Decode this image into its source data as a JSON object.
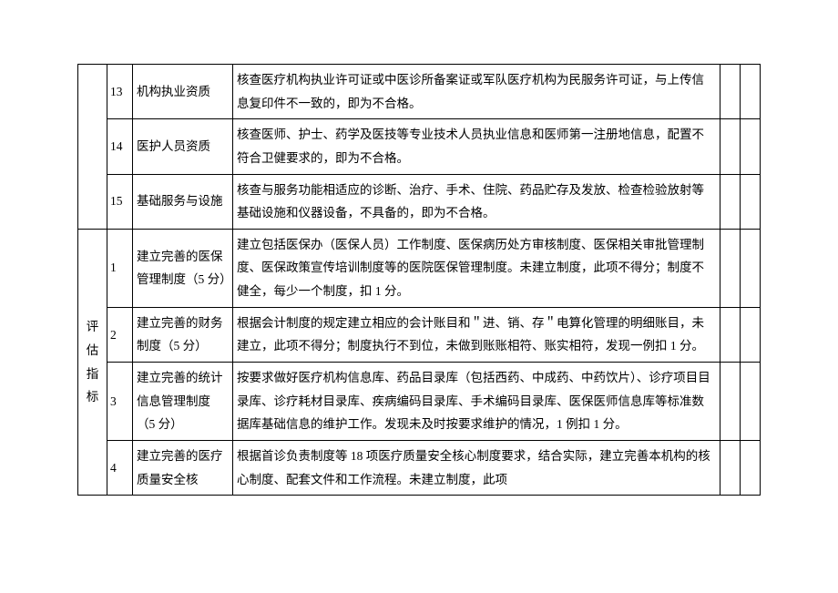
{
  "categories": {
    "top": "",
    "bottom": "评估指标"
  },
  "rows": [
    {
      "num": "13",
      "name": "机构执业资质",
      "desc": "核查医疗机构执业许可证或中医诊所备案证或军队医疗机构为民服务许可证，与上传信息复印件不一致的，即为不合格。"
    },
    {
      "num": "14",
      "name": "医护人员资质",
      "desc": "核查医师、护士、药学及医技等专业技术人员执业信息和医师第一注册地信息，配置不符合卫健要求的，即为不合格。"
    },
    {
      "num": "15",
      "name": "基础服务与设施",
      "desc": "核查与服务功能相适应的诊断、治疗、手术、住院、药品贮存及发放、检查检验放射等基础设施和仪器设备，不具备的，即为不合格。"
    },
    {
      "num": "1",
      "name": "建立完善的医保管理制度（5 分）",
      "desc": "建立包括医保办（医保人员）工作制度、医保病历处方审核制度、医保相关审批管理制度、医保政策宣传培训制度等的医院医保管理制度。未建立制度，此项不得分；制度不健全，每少一个制度，扣 1 分。"
    },
    {
      "num": "2",
      "name": "建立完善的财务制度（5 分）",
      "desc": "根据会计制度的规定建立相应的会计账目和＂进、销、存＂电算化管理的明细账目，未建立，此项不得分；制度执行不到位，未做到账账相符、账实相符，发现一例扣 1 分。"
    },
    {
      "num": "3",
      "name": "建立完善的统计信息管理制度（5 分）",
      "desc": "按要求做好医疗机构信息库、药品目录库（包括西药、中成药、中药饮片）、诊疗项目目录库、诊疗耗材目录库、疾病编码目录库、手术编码目录库、医保医师信息库等标准数据库基础信息的维护工作。发现未及时按要求维护的情况，1 例扣 1 分。"
    },
    {
      "num": "4",
      "name": "建立完善的医疗质量安全核",
      "desc": "根据首诊负责制度等 18 项医疗质量安全核心制度要求，结合实际，建立完善本机构的核心制度、配套文件和工作流程。未建立制度，此项"
    }
  ],
  "style": {
    "background": "#ffffff",
    "border_color": "#000000",
    "font_family": "SimSun",
    "font_size_pt": 10,
    "line_height": 1.9
  }
}
